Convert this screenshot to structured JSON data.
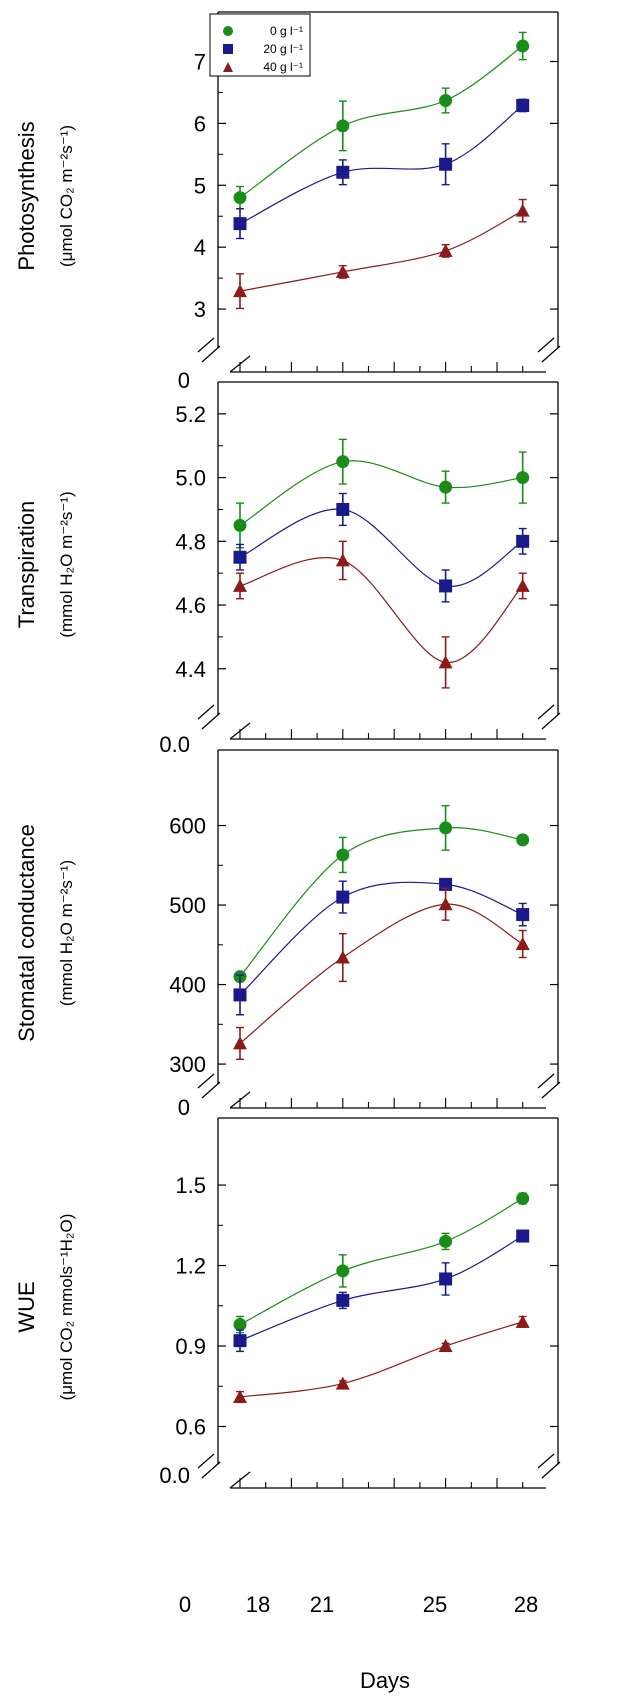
{
  "figure": {
    "x_axis_title": "Days",
    "x_ticks": [
      "0",
      "18",
      "21",
      "25",
      "28"
    ]
  },
  "legend": [
    {
      "label": "0 g l⁻¹",
      "color": "#1a8c1a",
      "marker": "circle"
    },
    {
      "label": "20 g l⁻¹",
      "color": "#1a1a8c",
      "marker": "square"
    },
    {
      "label": "40 g l⁻¹",
      "color": "#8c1a1a",
      "marker": "triangle"
    }
  ],
  "chart_data": [
    {
      "type": "line",
      "ylabel": "Photosynthesis",
      "ylabel_unit": "(μmol CO₂ m⁻²s⁻¹)",
      "x": [
        16,
        20,
        24,
        27
      ],
      "yticks": [
        "3",
        "4",
        "5",
        "6",
        "7"
      ],
      "ylim": [
        2.5,
        7.8
      ],
      "axis_zero_label": "0",
      "series": [
        {
          "name": "0 g l⁻¹",
          "values": [
            4.8,
            5.96,
            6.37,
            7.25
          ],
          "errors": [
            0.18,
            0.4,
            0.2,
            0.22
          ]
        },
        {
          "name": "20 g l⁻¹",
          "values": [
            4.38,
            5.21,
            5.34,
            6.29
          ],
          "errors": [
            0.24,
            0.2,
            0.33,
            0.1
          ]
        },
        {
          "name": "40 g l⁻¹",
          "values": [
            3.29,
            3.6,
            3.94,
            4.59
          ],
          "errors": [
            0.28,
            0.1,
            0.1,
            0.18
          ]
        }
      ]
    },
    {
      "type": "line",
      "ylabel": "Transpiration",
      "ylabel_unit": "(mmol H₂O m⁻²s⁻¹)",
      "x": [
        16,
        20,
        24,
        27
      ],
      "yticks": [
        "4.4",
        "4.6",
        "4.8",
        "5.0",
        "5.2"
      ],
      "ylim": [
        4.28,
        5.3
      ],
      "axis_zero_label": "0.0",
      "series": [
        {
          "name": "0 g l⁻¹",
          "values": [
            4.85,
            5.05,
            4.97,
            5.0
          ],
          "errors": [
            0.07,
            0.07,
            0.05,
            0.08
          ]
        },
        {
          "name": "20 g l⁻¹",
          "values": [
            4.75,
            4.9,
            4.66,
            4.8
          ],
          "errors": [
            0.04,
            0.05,
            0.05,
            0.04
          ]
        },
        {
          "name": "40 g l⁻¹",
          "values": [
            4.66,
            4.74,
            4.42,
            4.66
          ],
          "errors": [
            0.04,
            0.06,
            0.08,
            0.04
          ]
        }
      ]
    },
    {
      "type": "line",
      "ylabel": "Stomatal conductance",
      "ylabel_unit": "(mmol H₂O m⁻²s⁻¹)",
      "x": [
        16,
        20,
        24,
        27
      ],
      "yticks": [
        "300",
        "400",
        "500",
        "600"
      ],
      "ylim": [
        285,
        695
      ],
      "axis_zero_label": "0",
      "series": [
        {
          "name": "0 g l⁻¹",
          "values": [
            410,
            563,
            597,
            582
          ],
          "errors": [
            5,
            22,
            28,
            6
          ]
        },
        {
          "name": "20 g l⁻¹",
          "values": [
            387,
            510,
            526,
            488
          ],
          "errors": [
            25,
            20,
            6,
            14
          ]
        },
        {
          "name": "40 g l⁻¹",
          "values": [
            326,
            434,
            501,
            451
          ],
          "errors": [
            20,
            30,
            20,
            17
          ]
        }
      ]
    },
    {
      "type": "line",
      "ylabel": "WUE",
      "ylabel_unit": "(μmol CO₂ mmols⁻¹H₂O)",
      "x": [
        16,
        20,
        24,
        27
      ],
      "yticks": [
        "0.6",
        "0.9",
        "1.2",
        "1.5"
      ],
      "ylim": [
        0.49,
        1.75
      ],
      "axis_zero_label": "0.0",
      "series": [
        {
          "name": "0 g l⁻¹",
          "values": [
            0.98,
            1.18,
            1.29,
            1.45
          ],
          "errors": [
            0.03,
            0.06,
            0.03,
            0.02
          ]
        },
        {
          "name": "20 g l⁻¹",
          "values": [
            0.92,
            1.07,
            1.15,
            1.31
          ],
          "errors": [
            0.04,
            0.03,
            0.06,
            0.01
          ]
        },
        {
          "name": "40 g l⁻¹",
          "values": [
            0.71,
            0.76,
            0.9,
            0.99
          ],
          "errors": [
            0.02,
            0.01,
            0.01,
            0.02
          ]
        }
      ]
    }
  ]
}
